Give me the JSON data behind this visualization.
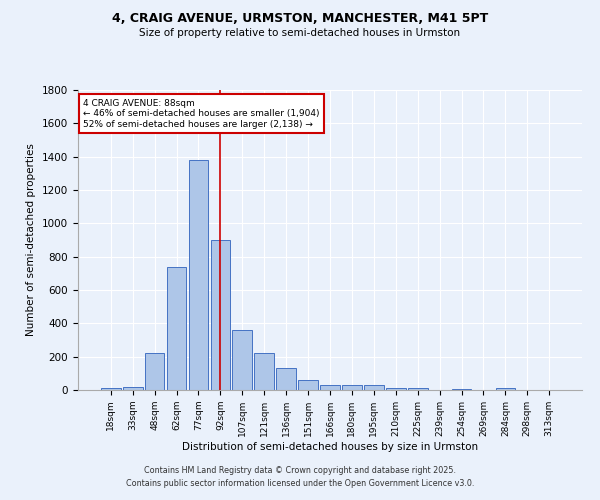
{
  "title1": "4, CRAIG AVENUE, URMSTON, MANCHESTER, M41 5PT",
  "title2": "Size of property relative to semi-detached houses in Urmston",
  "xlabel": "Distribution of semi-detached houses by size in Urmston",
  "ylabel": "Number of semi-detached properties",
  "bin_labels": [
    "18sqm",
    "33sqm",
    "48sqm",
    "62sqm",
    "77sqm",
    "92sqm",
    "107sqm",
    "121sqm",
    "136sqm",
    "151sqm",
    "166sqm",
    "180sqm",
    "195sqm",
    "210sqm",
    "225sqm",
    "239sqm",
    "254sqm",
    "269sqm",
    "284sqm",
    "298sqm",
    "313sqm"
  ],
  "bar_values": [
    10,
    20,
    220,
    740,
    1380,
    900,
    360,
    220,
    130,
    60,
    30,
    30,
    30,
    10,
    10,
    0,
    5,
    0,
    10,
    0,
    0
  ],
  "bar_color": "#aec6e8",
  "bar_edge_color": "#4472c4",
  "bg_color": "#eaf1fb",
  "grid_color": "#ffffff",
  "property_line_x": 5.0,
  "annotation_text": "4 CRAIG AVENUE: 88sqm\n← 46% of semi-detached houses are smaller (1,904)\n52% of semi-detached houses are larger (2,138) →",
  "annotation_box_color": "#ffffff",
  "annotation_box_edge": "#cc0000",
  "red_line_color": "#cc0000",
  "ylim": [
    0,
    1800
  ],
  "yticks": [
    0,
    200,
    400,
    600,
    800,
    1000,
    1200,
    1400,
    1600,
    1800
  ],
  "footnote1": "Contains HM Land Registry data © Crown copyright and database right 2025.",
  "footnote2": "Contains public sector information licensed under the Open Government Licence v3.0."
}
